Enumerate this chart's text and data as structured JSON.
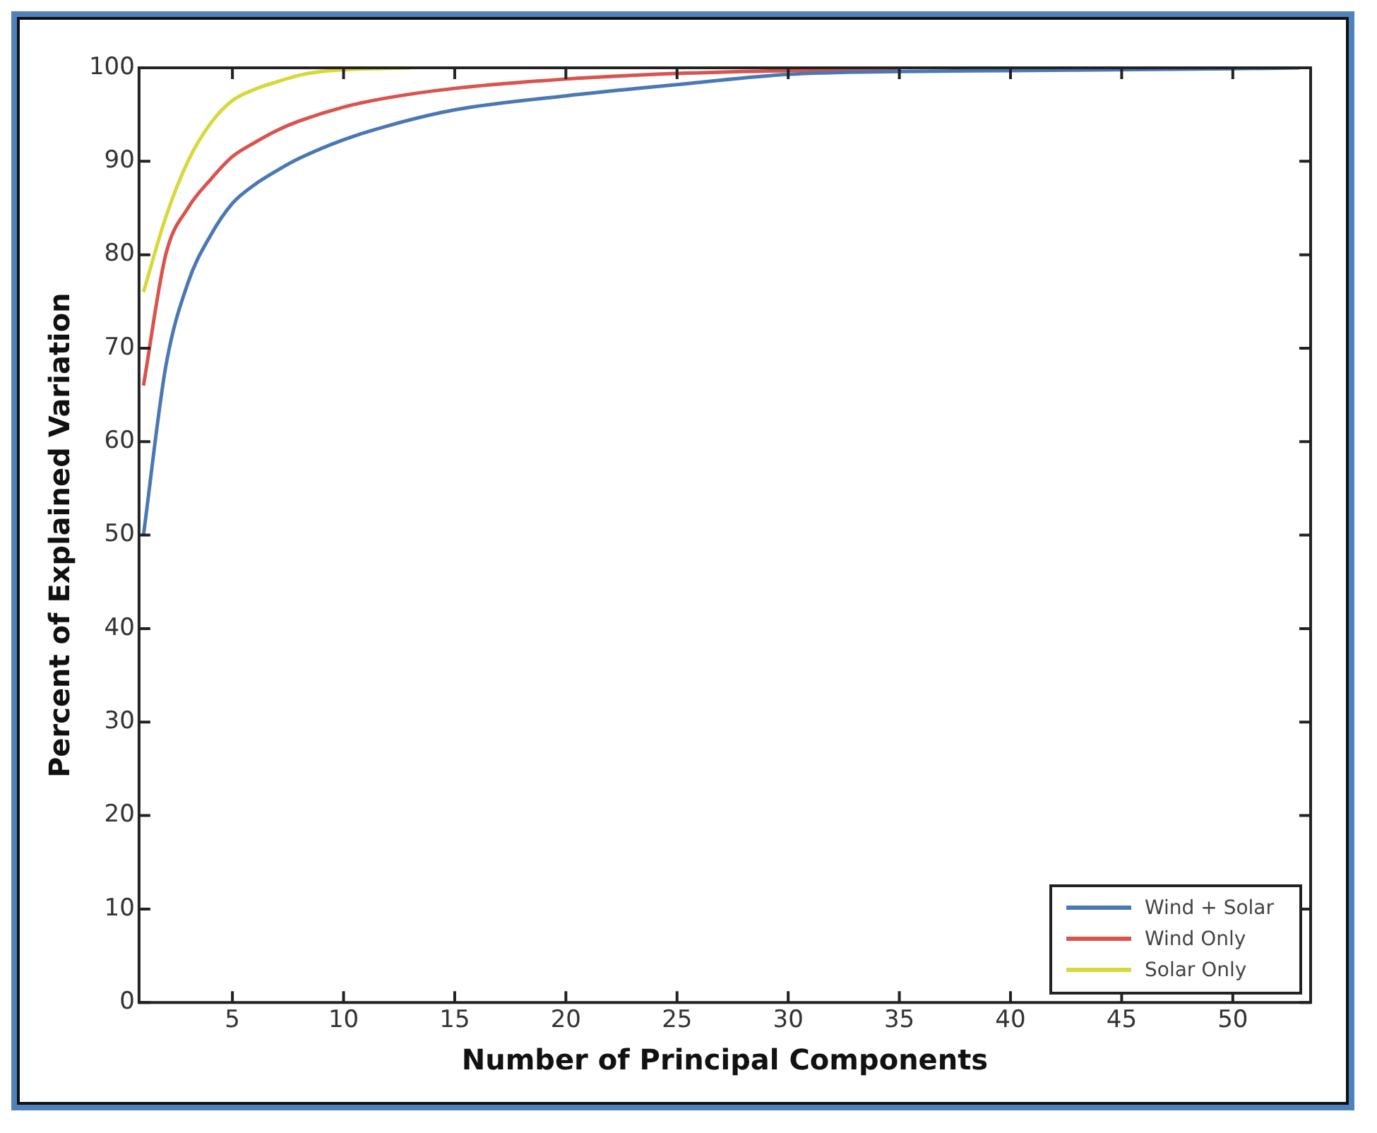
{
  "chart_data": {
    "type": "line",
    "xlabel": "Number of Principal Components",
    "ylabel": "Percent of Explained Variation",
    "xlim": [
      0.8,
      53.5
    ],
    "xticks": [
      5,
      10,
      15,
      20,
      25,
      30,
      35,
      40,
      45,
      50
    ],
    "ylim": [
      0,
      100
    ],
    "yticks": [
      0,
      10,
      20,
      30,
      40,
      50,
      60,
      70,
      80,
      90,
      100
    ],
    "legend": "bottom right",
    "grid": false,
    "marker": "none",
    "line_style": "solid",
    "series": [
      {
        "name": "Wind + Solar",
        "color": "#4a78b5",
        "x": [
          1,
          2,
          3,
          4,
          5,
          6,
          7,
          8,
          10,
          12,
          15,
          20,
          25,
          30,
          35,
          40,
          50,
          53
        ],
        "values": [
          50,
          68,
          77,
          82,
          85.5,
          87.5,
          89,
          90.3,
          92.3,
          93.8,
          95.5,
          97,
          98.2,
          99.3,
          99.6,
          99.7,
          99.9,
          100
        ]
      },
      {
        "name": "Wind Only",
        "color": "#d9534f",
        "x": [
          1,
          2,
          3,
          4,
          5,
          6,
          7,
          8,
          10,
          12,
          15,
          20,
          25,
          30,
          35
        ],
        "values": [
          66,
          80,
          85,
          88,
          90.5,
          92,
          93.3,
          94.3,
          95.8,
          96.8,
          97.8,
          98.8,
          99.4,
          99.7,
          99.9
        ]
      },
      {
        "name": "Solar Only",
        "color": "#d8d83a",
        "x": [
          1,
          2,
          3,
          4,
          5,
          6,
          7,
          8,
          9,
          10,
          13
        ],
        "values": [
          76,
          84,
          90,
          94,
          96.5,
          97.7,
          98.5,
          99.2,
          99.6,
          99.8,
          100
        ]
      }
    ]
  }
}
